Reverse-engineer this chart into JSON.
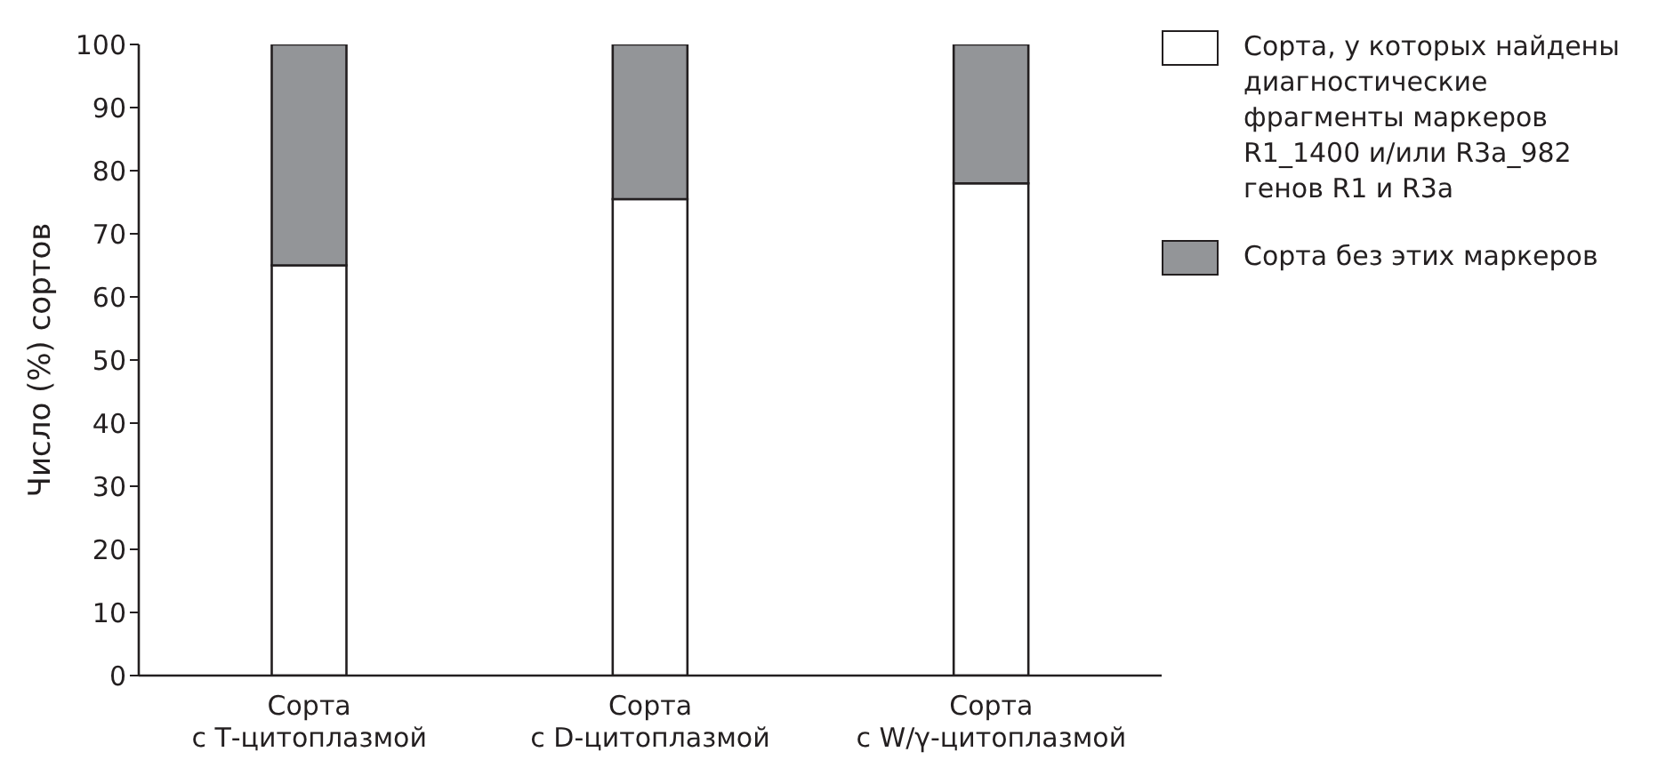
{
  "chart_data": {
    "type": "bar",
    "stacked": true,
    "ylabel": "Число (%) сортов",
    "categories": [
      "Сорта\nс Т-цитоплазмой",
      "Сорта\nс D-цитоплазмой",
      "Сорта\nс W/γ-цитоплазмой"
    ],
    "series": [
      {
        "name": "Сорта, у которых найдены диагностические фрагменты маркеров R1_1400 и/или R3a_982 генов R1 и R3a",
        "color": "#ffffff",
        "values": [
          65,
          75.5,
          78
        ]
      },
      {
        "name": "Сорта без этих маркеров",
        "color": "#939598",
        "values": [
          35,
          24.5,
          22
        ]
      }
    ],
    "ylim": [
      0,
      100
    ],
    "yticks": [
      0,
      10,
      20,
      30,
      40,
      50,
      60,
      70,
      80,
      90,
      100
    ],
    "grid": false,
    "legend": "top right"
  }
}
